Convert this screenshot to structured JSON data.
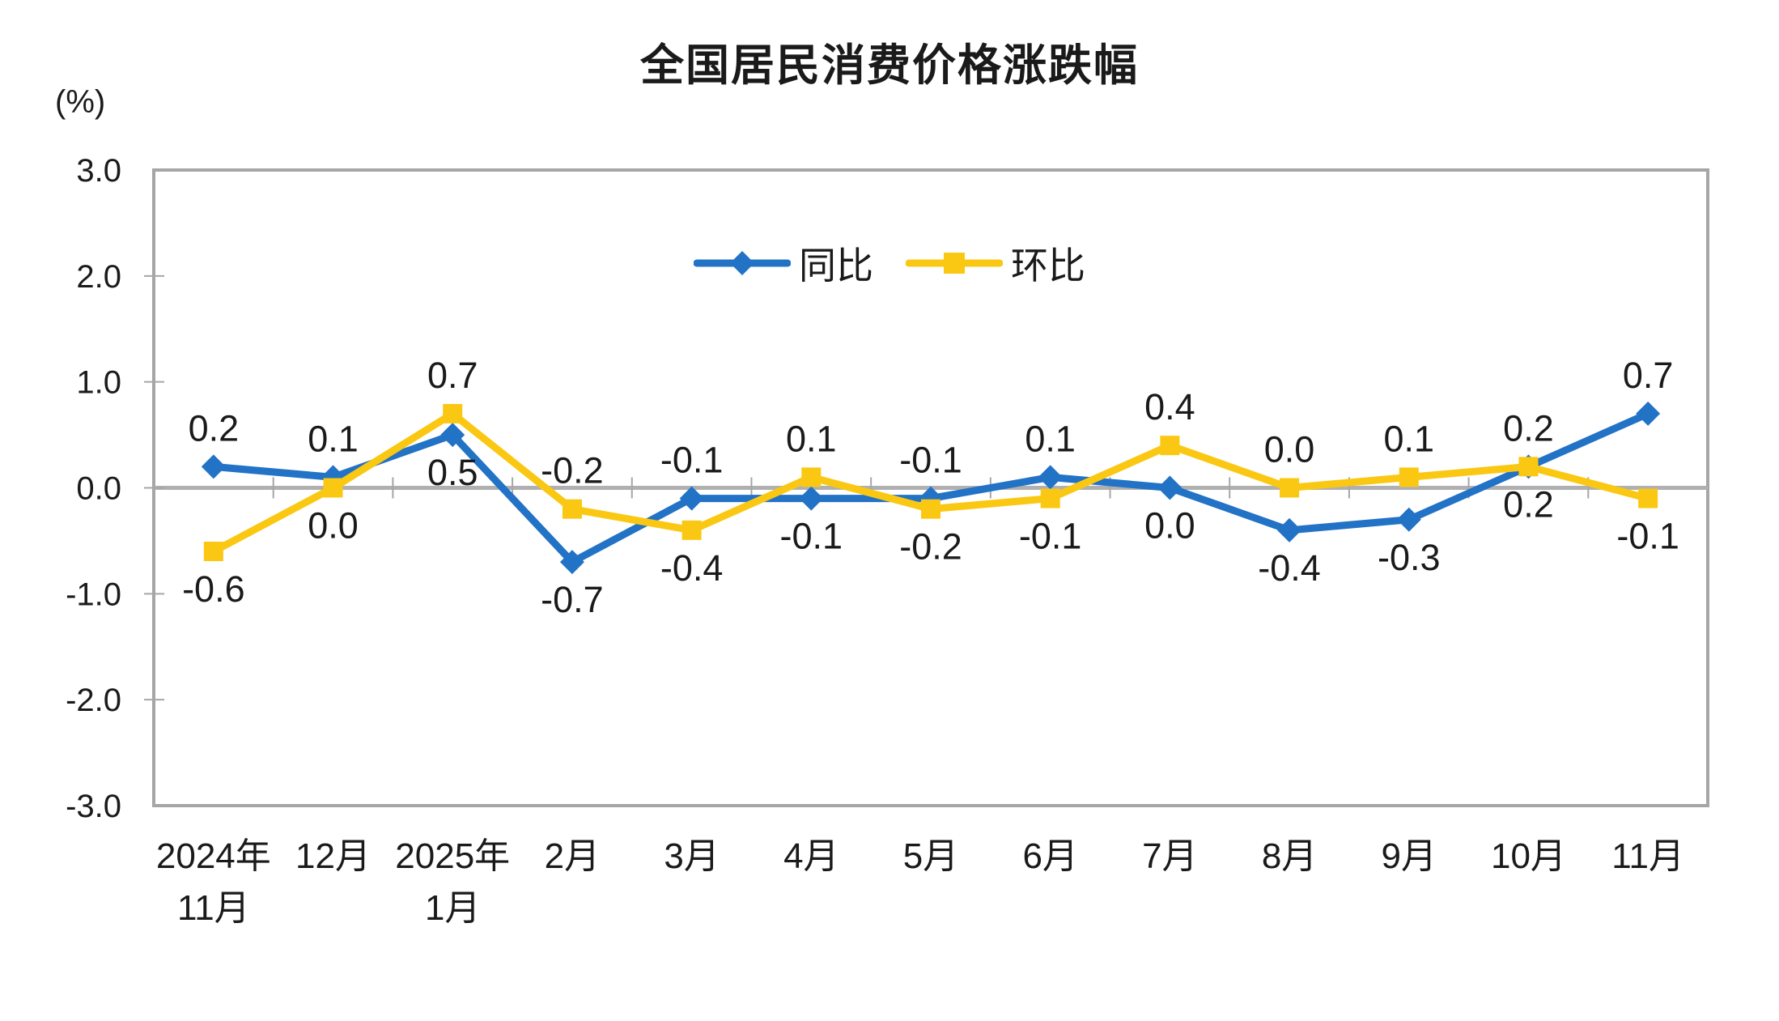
{
  "title": "全国居民消费价格涨跌幅",
  "y_axis_unit": "(%)",
  "colors": {
    "yoy_blue": "#2272C6",
    "mom_yellow": "#FAC812",
    "axis_gray": "#A6A6A6",
    "zero_line_gray": "#B0B0B0",
    "text_black": "#1a1a1a"
  },
  "chart_data": {
    "type": "line",
    "title": "全国居民消费价格涨跌幅",
    "ylabel": "(%)",
    "xlabel": "",
    "ylim": [
      -3.0,
      3.0
    ],
    "y_ticks": [
      {
        "label": "3.0",
        "value": 3.0
      },
      {
        "label": "2.0",
        "value": 2.0
      },
      {
        "label": "1.0",
        "value": 1.0
      },
      {
        "label": "0.0",
        "value": 0.0
      },
      {
        "label": "-1.0",
        "value": -1.0
      },
      {
        "label": "-2.0",
        "value": -2.0
      },
      {
        "label": "-3.0",
        "value": -3.0
      }
    ],
    "grid": "zero-line-only",
    "legend_position": "top-center-inside",
    "categories": [
      "2024年\n11月",
      "12月",
      "2025年\n1月",
      "2月",
      "3月",
      "4月",
      "5月",
      "6月",
      "7月",
      "8月",
      "9月",
      "10月",
      "11月"
    ],
    "series": [
      {
        "name": "同比",
        "marker": "diamond",
        "color": "#2272C6",
        "values": [
          0.2,
          0.1,
          0.5,
          -0.7,
          -0.1,
          -0.1,
          -0.1,
          0.1,
          0.0,
          -0.4,
          -0.3,
          0.2,
          0.7
        ],
        "labels": [
          "0.2",
          "0.1",
          "0.5",
          "-0.7",
          "-0.1",
          "-0.1",
          "-0.1",
          "0.1",
          "0.0",
          "-0.4",
          "-0.3",
          "0.2",
          "0.7"
        ],
        "label_side": [
          "above",
          "above",
          "below",
          "below",
          "above",
          "below",
          "above",
          "above",
          "below",
          "below",
          "below",
          "above",
          "above"
        ]
      },
      {
        "name": "环比",
        "marker": "square",
        "color": "#FAC812",
        "values": [
          -0.6,
          0.0,
          0.7,
          -0.2,
          -0.4,
          0.1,
          -0.2,
          -0.1,
          0.4,
          0.0,
          0.1,
          0.2,
          -0.1
        ],
        "labels": [
          "-0.6",
          "0.0",
          "0.7",
          "-0.2",
          "-0.4",
          "0.1",
          "-0.2",
          "-0.1",
          "0.4",
          "0.0",
          "0.1",
          "0.2",
          "-0.1"
        ],
        "label_side": [
          "below",
          "below",
          "above",
          "above",
          "below",
          "above",
          "below",
          "below",
          "above",
          "above",
          "above",
          "below",
          "below"
        ]
      }
    ]
  }
}
